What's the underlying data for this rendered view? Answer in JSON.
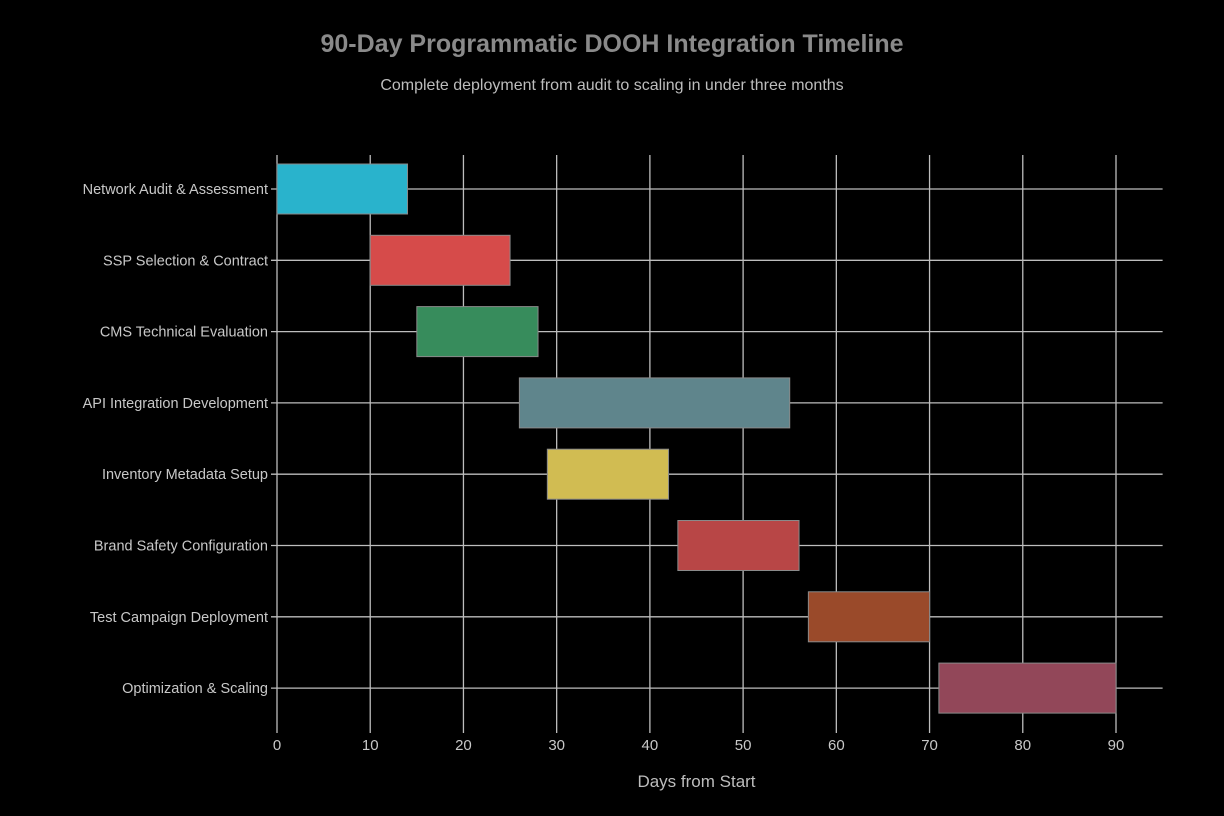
{
  "chart_data": {
    "type": "bar",
    "orientation": "horizontal-gantt",
    "title": "90-Day Programmatic DOOH Integration Timeline",
    "subtitle": "Complete deployment from audit to scaling in under three months",
    "xlabel": "Days from Start",
    "ylabel": "",
    "xlim": [
      0,
      95
    ],
    "xticks": [
      0,
      10,
      20,
      30,
      40,
      50,
      60,
      70,
      80,
      90
    ],
    "grid": true,
    "background": "#000000",
    "tasks": [
      {
        "name": "Network Audit & Assessment",
        "start": 0,
        "end": 14,
        "color": "#29b3cc"
      },
      {
        "name": "SSP Selection & Contract",
        "start": 10,
        "end": 25,
        "color": "#d64b4a"
      },
      {
        "name": "CMS Technical Evaluation",
        "start": 15,
        "end": 28,
        "color": "#378c5c"
      },
      {
        "name": "API Integration Development",
        "start": 26,
        "end": 55,
        "color": "#5f858c"
      },
      {
        "name": "Inventory Metadata Setup",
        "start": 29,
        "end": 42,
        "color": "#d1bc52"
      },
      {
        "name": "Brand Safety Configuration",
        "start": 43,
        "end": 56,
        "color": "#b84646"
      },
      {
        "name": "Test Campaign Deployment",
        "start": 57,
        "end": 70,
        "color": "#9a4a2a"
      },
      {
        "name": "Optimization & Scaling",
        "start": 71,
        "end": 90,
        "color": "#924759"
      }
    ]
  }
}
